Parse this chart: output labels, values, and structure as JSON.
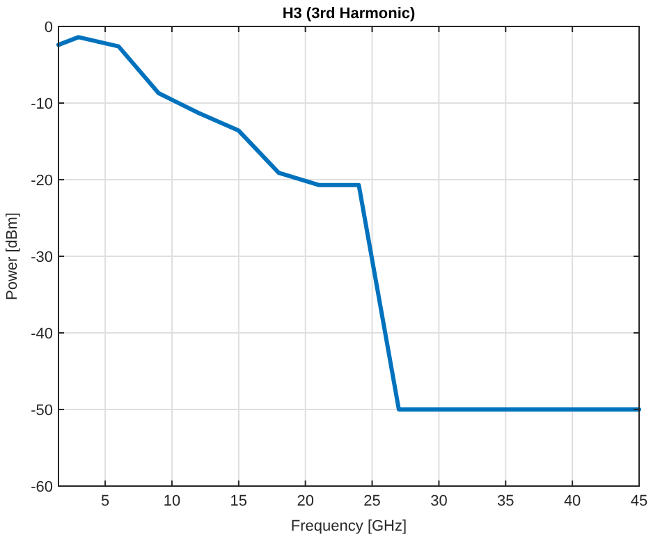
{
  "chart_data": {
    "type": "line",
    "title": "H3 (3rd Harmonic)",
    "xlabel": "Frequency [GHz]",
    "ylabel": "Power [dBm]",
    "x": [
      1.5,
      3,
      6,
      9,
      12,
      15,
      18,
      21,
      24,
      27,
      45
    ],
    "series": [
      {
        "color": "#0072bd",
        "values": [
          -2.4,
          -1.4,
          -2.6,
          -8.7,
          -11.3,
          -13.6,
          -19.1,
          -20.7,
          -20.7,
          -50,
          -50
        ]
      }
    ],
    "xlim": [
      1.5,
      45
    ],
    "xticks": [
      5,
      10,
      15,
      20,
      25,
      30,
      35,
      40,
      45
    ],
    "ylim": [
      -60,
      0
    ],
    "yticks": [
      -60,
      -50,
      -40,
      -30,
      -20,
      -10,
      0
    ],
    "grid": true,
    "line_style": "solid",
    "marker": "none"
  }
}
